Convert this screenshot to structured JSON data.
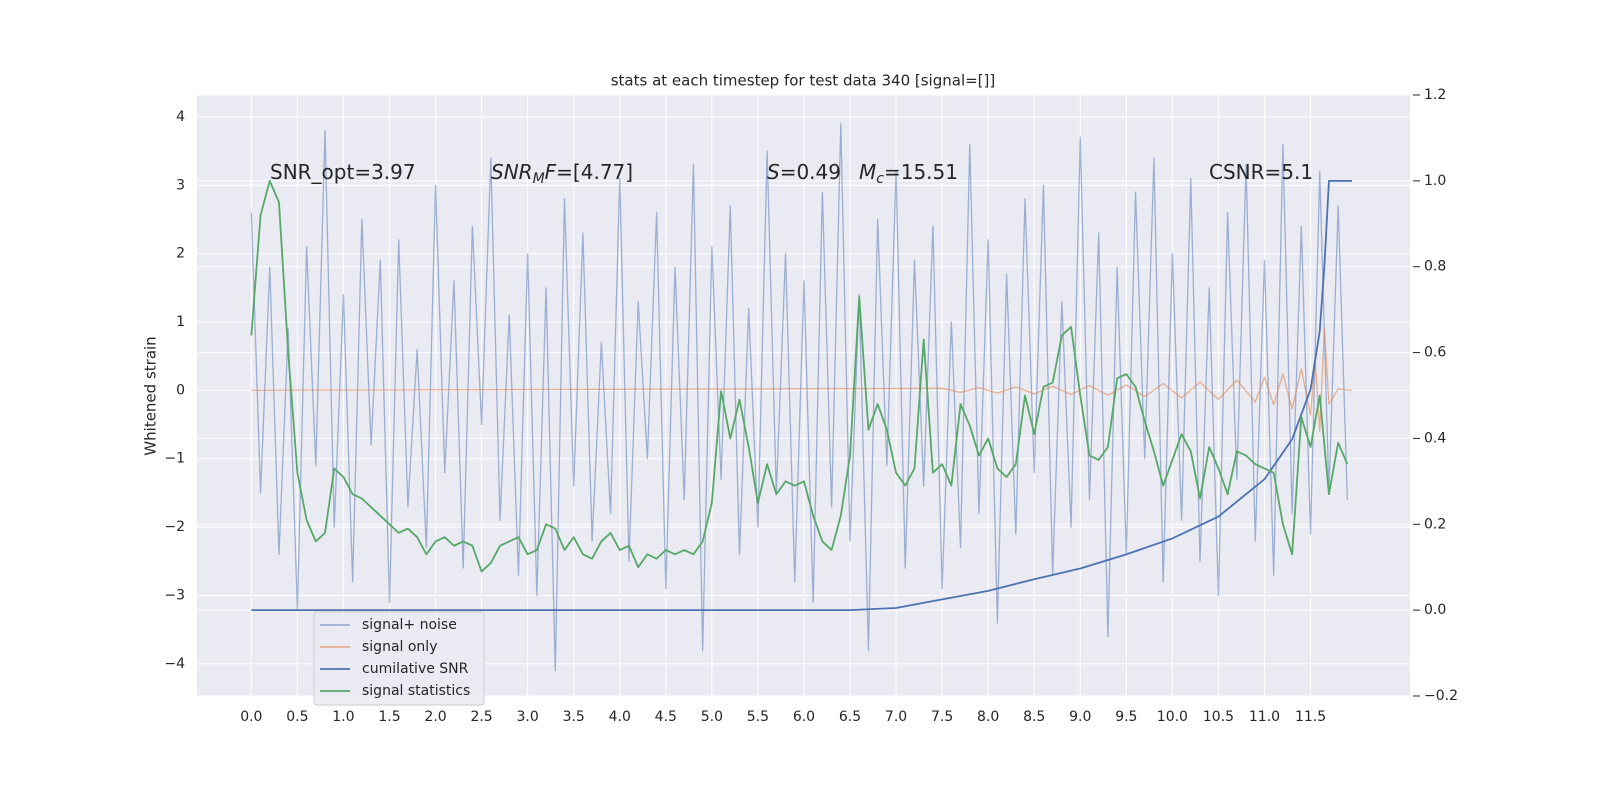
{
  "chart_data": {
    "type": "line",
    "title": "stats at each timestep for test data 340 [signal=[]]",
    "ylabel": "Whitened strain",
    "xlim": [
      -0.59,
      12.58
    ],
    "ylim": [
      -4.47,
      4.32
    ],
    "y2lim": [
      -0.2,
      1.2
    ],
    "grid": true,
    "legend": "lower left",
    "background": "#eaeaf2",
    "xticks": [
      {
        "value": 0,
        "label": "0.0"
      },
      0.5,
      {
        "value": 1,
        "label": "1.0"
      },
      1.5,
      {
        "value": 2,
        "label": "2.0"
      },
      2.5,
      {
        "value": 3,
        "label": "3.0"
      },
      3.5,
      {
        "value": 4,
        "label": "4.0"
      },
      4.5,
      {
        "value": 5,
        "label": "5.0"
      },
      5.5,
      {
        "value": 6,
        "label": "6.0"
      },
      6.5,
      {
        "value": 7,
        "label": "7.0"
      },
      7.5,
      {
        "value": 8,
        "label": "8.0"
      },
      8.5,
      {
        "value": 9,
        "label": "9.0"
      },
      9.5,
      {
        "value": 10,
        "label": "10.0"
      },
      10.5,
      {
        "value": 11,
        "label": "11.0"
      },
      11.5
    ],
    "yticks": [
      {
        "value": -4,
        "label": "−4"
      },
      {
        "value": -3,
        "label": "−3"
      },
      {
        "value": -2,
        "label": "−2"
      },
      {
        "value": -1,
        "label": "−1"
      },
      0,
      1,
      2,
      3,
      4
    ],
    "y2ticks": [
      {
        "value": -0.2,
        "label": "−0.2"
      },
      {
        "value": 0,
        "label": "0.0"
      },
      0.2,
      0.4,
      0.6,
      0.8,
      {
        "value": 1,
        "label": "1.0"
      },
      1.2
    ],
    "annotations": [
      {
        "parts": [
          {
            "t": "SNR_opt=3.97"
          }
        ]
      },
      {
        "parts": [
          {
            "t": "SNR",
            "f": "it"
          },
          {
            "t": "M",
            "f": "sub"
          },
          {
            "t": "F",
            "f": "it"
          },
          {
            "t": "=[4.77]"
          }
        ]
      },
      {
        "parts": [
          {
            "t": "S",
            "f": "it"
          },
          {
            "t": "=0.49"
          }
        ]
      },
      {
        "parts": [
          {
            "t": "M",
            "f": "it"
          },
          {
            "t": "c",
            "f": "sub"
          },
          {
            "t": "=15.51"
          }
        ]
      },
      {
        "parts": [
          {
            "t": "CSNR=5.1"
          }
        ]
      }
    ],
    "series": [
      {
        "name": "signal+ noise",
        "color": "#4c72b0",
        "opacity": 0.5,
        "x": [
          0.0,
          0.1,
          0.2,
          0.3,
          0.4,
          0.5,
          0.6,
          0.7,
          0.8,
          0.9,
          1.0,
          1.1,
          1.2,
          1.3,
          1.4,
          1.5,
          1.6,
          1.7,
          1.8,
          1.9,
          2.0,
          2.1,
          2.2,
          2.3,
          2.4,
          2.5,
          2.6,
          2.7,
          2.8,
          2.9,
          3.0,
          3.1,
          3.2,
          3.3,
          3.4,
          3.5,
          3.6,
          3.7,
          3.8,
          3.9,
          4.0,
          4.1,
          4.2,
          4.3,
          4.4,
          4.5,
          4.6,
          4.7,
          4.8,
          4.9,
          5.0,
          5.1,
          5.2,
          5.3,
          5.4,
          5.5,
          5.6,
          5.7,
          5.8,
          5.9,
          6.0,
          6.1,
          6.2,
          6.3,
          6.4,
          6.5,
          6.6,
          6.7,
          6.8,
          6.9,
          7.0,
          7.1,
          7.2,
          7.3,
          7.4,
          7.5,
          7.6,
          7.7,
          7.8,
          7.9,
          8.0,
          8.1,
          8.2,
          8.3,
          8.4,
          8.5,
          8.6,
          8.7,
          8.8,
          8.9,
          9.0,
          9.1,
          9.2,
          9.3,
          9.4,
          9.5,
          9.6,
          9.7,
          9.8,
          9.9,
          10.0,
          10.1,
          10.2,
          10.3,
          10.4,
          10.5,
          10.6,
          10.7,
          10.8,
          10.9,
          11.0,
          11.1,
          11.2,
          11.3,
          11.4,
          11.5,
          11.6,
          11.7,
          11.8,
          11.9
        ],
        "values": [
          2.6,
          -1.5,
          1.8,
          -2.4,
          0.9,
          -3.2,
          2.1,
          -1.1,
          3.8,
          -2.0,
          1.4,
          -2.8,
          2.5,
          -0.8,
          1.9,
          -3.1,
          2.2,
          -1.7,
          0.6,
          -2.3,
          3.0,
          -1.2,
          1.6,
          -2.6,
          2.4,
          -0.5,
          3.4,
          -1.9,
          1.1,
          -2.7,
          2.0,
          -3.0,
          1.5,
          -4.1,
          2.8,
          -1.4,
          2.3,
          -2.2,
          0.7,
          -1.8,
          3.1,
          -2.5,
          1.3,
          -1.0,
          2.6,
          -2.9,
          1.8,
          -1.6,
          3.3,
          -3.8,
          2.1,
          -1.3,
          2.7,
          -2.4,
          1.2,
          -2.0,
          3.5,
          -1.5,
          2.0,
          -2.8,
          1.6,
          -3.1,
          2.9,
          -1.7,
          3.9,
          -2.2,
          1.4,
          -3.8,
          2.5,
          -1.1,
          3.2,
          -2.6,
          1.9,
          -1.4,
          2.4,
          -2.9,
          1.0,
          -2.3,
          3.6,
          -1.8,
          2.2,
          -3.4,
          1.7,
          -2.1,
          2.8,
          -1.2,
          3.0,
          -2.7,
          1.3,
          -2.0,
          3.7,
          -1.6,
          2.3,
          -3.6,
          1.8,
          -2.4,
          2.9,
          -1.0,
          3.4,
          -2.8,
          2.0,
          -1.9,
          3.1,
          -2.5,
          1.5,
          -3.0,
          2.6,
          -1.3,
          3.3,
          -2.2,
          1.9,
          -2.7,
          3.6,
          -1.8,
          2.4,
          -2.1,
          3.2,
          -1.5,
          2.7,
          -1.6
        ]
      },
      {
        "name": "signal only",
        "color": "#dd8452",
        "opacity": 0.6,
        "x": [
          0.0,
          7.5,
          7.7,
          7.9,
          8.1,
          8.3,
          8.5,
          8.7,
          8.9,
          9.1,
          9.3,
          9.5,
          9.7,
          9.9,
          10.1,
          10.3,
          10.5,
          10.7,
          10.9,
          11.0,
          11.1,
          11.2,
          11.3,
          11.4,
          11.5,
          11.55,
          11.6,
          11.65,
          11.7,
          11.8,
          11.95
        ],
        "values": [
          0,
          0.03,
          -0.03,
          0.04,
          -0.04,
          0.05,
          -0.05,
          0.06,
          -0.06,
          0.07,
          -0.07,
          0.08,
          -0.09,
          0.1,
          -0.11,
          0.12,
          -0.13,
          0.15,
          -0.17,
          0.19,
          -0.21,
          0.24,
          -0.27,
          0.31,
          -0.36,
          0.45,
          -0.6,
          0.9,
          -0.2,
          0.02,
          0
        ]
      },
      {
        "name": "cumilative SNR",
        "color": "#4c72b0",
        "opacity": 1,
        "axis": "y2",
        "x": [
          0,
          6.5,
          7.0,
          7.5,
          8.0,
          8.5,
          9.0,
          9.5,
          10.0,
          10.5,
          11.0,
          11.3,
          11.5,
          11.6,
          11.65,
          11.7,
          11.95
        ],
        "values": [
          0,
          0,
          0.005,
          0.025,
          0.045,
          0.072,
          0.097,
          0.13,
          0.167,
          0.218,
          0.305,
          0.398,
          0.514,
          0.65,
          0.8,
          1.0,
          1.0
        ]
      },
      {
        "name": "signal statistics",
        "color": "#55a868",
        "opacity": 1,
        "axis": "y2",
        "x": [
          0.0,
          0.1,
          0.2,
          0.3,
          0.4,
          0.5,
          0.6,
          0.7,
          0.8,
          0.9,
          1.0,
          1.1,
          1.2,
          1.3,
          1.4,
          1.5,
          1.6,
          1.7,
          1.8,
          1.9,
          2.0,
          2.1,
          2.2,
          2.3,
          2.4,
          2.5,
          2.6,
          2.7,
          2.8,
          2.9,
          3.0,
          3.1,
          3.2,
          3.3,
          3.4,
          3.5,
          3.6,
          3.7,
          3.8,
          3.9,
          4.0,
          4.1,
          4.2,
          4.3,
          4.4,
          4.5,
          4.6,
          4.7,
          4.8,
          4.9,
          5.0,
          5.1,
          5.2,
          5.3,
          5.4,
          5.5,
          5.6,
          5.7,
          5.8,
          5.9,
          6.0,
          6.1,
          6.2,
          6.3,
          6.4,
          6.5,
          6.6,
          6.7,
          6.8,
          6.9,
          7.0,
          7.1,
          7.2,
          7.3,
          7.4,
          7.5,
          7.6,
          7.7,
          7.8,
          7.9,
          8.0,
          8.1,
          8.2,
          8.3,
          8.4,
          8.5,
          8.6,
          8.7,
          8.8,
          8.9,
          9.0,
          9.1,
          9.2,
          9.3,
          9.4,
          9.5,
          9.6,
          9.7,
          9.8,
          9.9,
          10.0,
          10.1,
          10.2,
          10.3,
          10.4,
          10.5,
          10.6,
          10.7,
          10.8,
          10.9,
          11.0,
          11.1,
          11.2,
          11.3,
          11.4,
          11.5,
          11.6,
          11.7,
          11.8,
          11.9
        ],
        "values": [
          0.64,
          0.92,
          1.0,
          0.95,
          0.6,
          0.32,
          0.21,
          0.16,
          0.18,
          0.33,
          0.31,
          0.27,
          0.26,
          0.24,
          0.22,
          0.2,
          0.18,
          0.19,
          0.17,
          0.13,
          0.16,
          0.17,
          0.15,
          0.16,
          0.15,
          0.09,
          0.11,
          0.15,
          0.16,
          0.17,
          0.13,
          0.14,
          0.2,
          0.19,
          0.14,
          0.17,
          0.13,
          0.12,
          0.16,
          0.18,
          0.14,
          0.15,
          0.1,
          0.13,
          0.12,
          0.14,
          0.13,
          0.14,
          0.13,
          0.16,
          0.25,
          0.51,
          0.4,
          0.49,
          0.38,
          0.25,
          0.34,
          0.27,
          0.3,
          0.29,
          0.3,
          0.22,
          0.16,
          0.14,
          0.22,
          0.36,
          0.73,
          0.42,
          0.48,
          0.42,
          0.32,
          0.29,
          0.33,
          0.63,
          0.32,
          0.34,
          0.29,
          0.48,
          0.43,
          0.36,
          0.4,
          0.33,
          0.31,
          0.34,
          0.5,
          0.41,
          0.52,
          0.53,
          0.64,
          0.66,
          0.5,
          0.36,
          0.35,
          0.38,
          0.54,
          0.55,
          0.52,
          0.44,
          0.37,
          0.29,
          0.35,
          0.41,
          0.37,
          0.26,
          0.38,
          0.33,
          0.27,
          0.37,
          0.36,
          0.34,
          0.33,
          0.32,
          0.2,
          0.13,
          0.45,
          0.38,
          0.5,
          0.27,
          0.39,
          0.34
        ]
      }
    ]
  }
}
